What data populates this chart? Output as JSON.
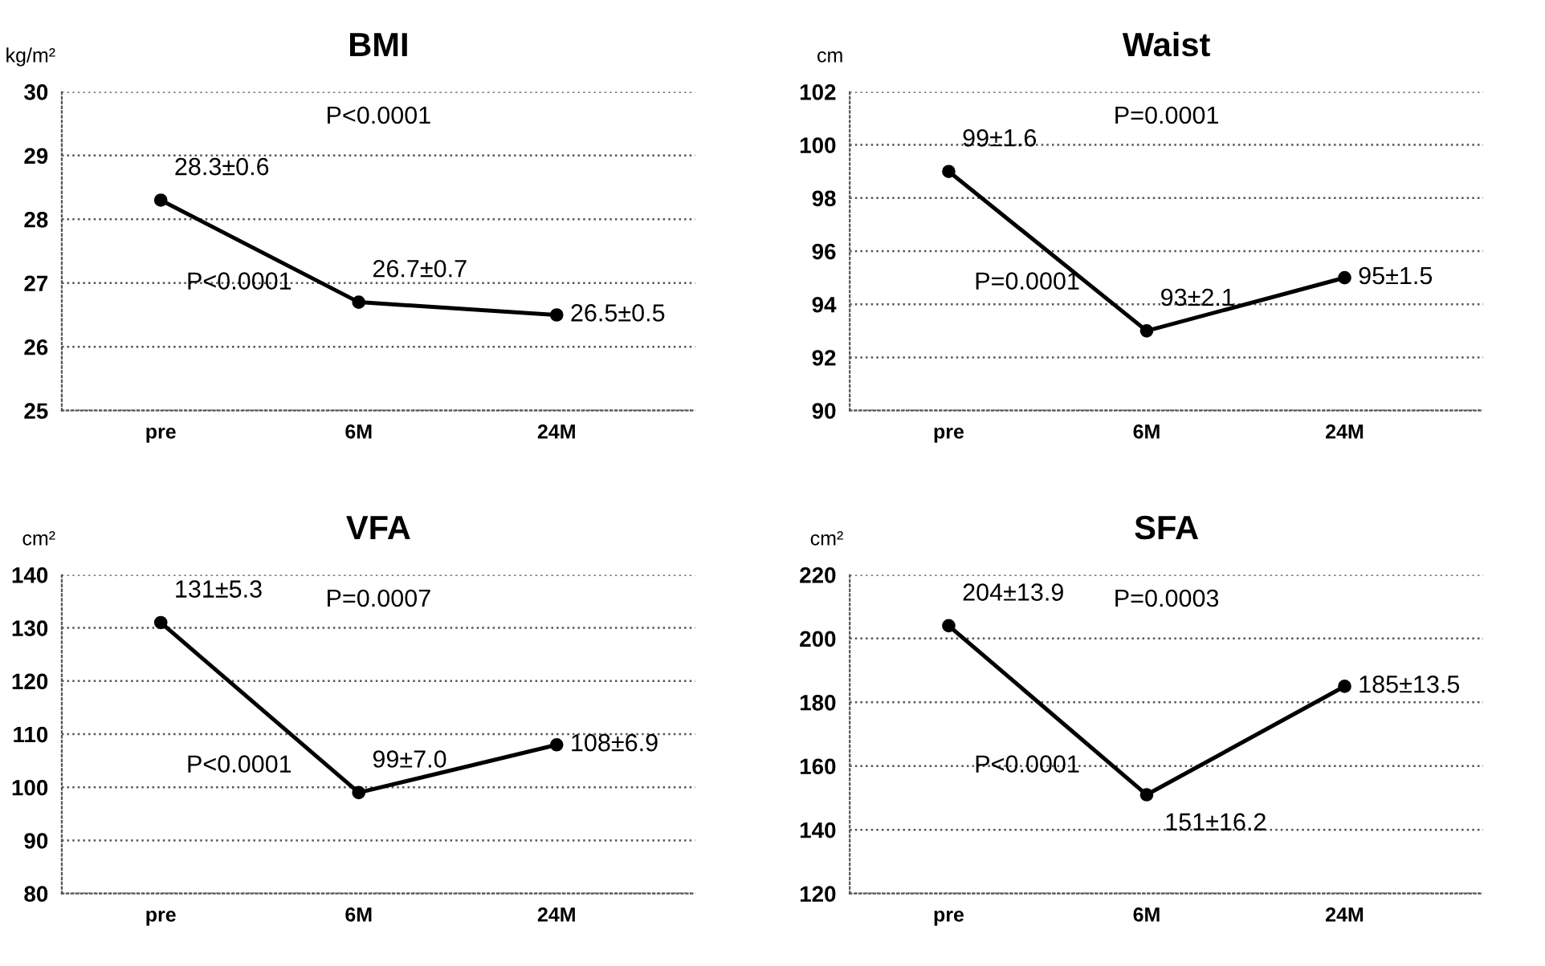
{
  "chart_data": [
    {
      "type": "line",
      "title": "BMI",
      "ylabel": "kg/m²",
      "categories": [
        "pre",
        "6M",
        "24M"
      ],
      "series": [
        {
          "color": "#000000",
          "values": [
            28.3,
            26.7,
            26.5
          ],
          "value_labels": [
            "28.3±0.6",
            "26.7±0.7",
            "26.5±0.5"
          ]
        }
      ],
      "ylim": [
        25,
        30
      ],
      "yticks": [
        25,
        26,
        27,
        28,
        29,
        30
      ],
      "grid": "y",
      "marker": "circle",
      "line_style": "solid",
      "annotations": [
        "P<0.0001",
        "P<0.0001"
      ]
    },
    {
      "type": "line",
      "title": "Waist",
      "ylabel": "cm",
      "categories": [
        "pre",
        "6M",
        "24M"
      ],
      "series": [
        {
          "color": "#000000",
          "values": [
            99,
            93,
            95
          ],
          "value_labels": [
            "99±1.6",
            "93±2.1",
            "95±1.5"
          ]
        }
      ],
      "ylim": [
        90,
        102
      ],
      "yticks": [
        90,
        92,
        94,
        96,
        98,
        100,
        102
      ],
      "grid": "y",
      "marker": "circle",
      "line_style": "solid",
      "annotations": [
        "P=0.0001",
        "P=0.0001"
      ]
    },
    {
      "type": "line",
      "title": "VFA",
      "ylabel": "cm²",
      "categories": [
        "pre",
        "6M",
        "24M"
      ],
      "series": [
        {
          "color": "#000000",
          "values": [
            131,
            99,
            108
          ],
          "value_labels": [
            "131±5.3",
            "99±7.0",
            "108±6.9"
          ]
        }
      ],
      "ylim": [
        80,
        140
      ],
      "yticks": [
        80,
        90,
        100,
        110,
        120,
        130,
        140
      ],
      "grid": "y",
      "marker": "circle",
      "line_style": "solid",
      "annotations": [
        "P=0.0007",
        "P<0.0001"
      ]
    },
    {
      "type": "line",
      "title": "SFA",
      "ylabel": "cm²",
      "categories": [
        "pre",
        "6M",
        "24M"
      ],
      "series": [
        {
          "color": "#000000",
          "values": [
            204,
            151,
            185
          ],
          "value_labels": [
            "204±13.9",
            "151±16.2",
            "185±13.5"
          ]
        }
      ],
      "ylim": [
        120,
        220
      ],
      "yticks": [
        120,
        140,
        160,
        180,
        200,
        220
      ],
      "grid": "y",
      "marker": "circle",
      "line_style": "solid",
      "annotations": [
        "P=0.0003",
        "P<0.0001"
      ]
    }
  ]
}
